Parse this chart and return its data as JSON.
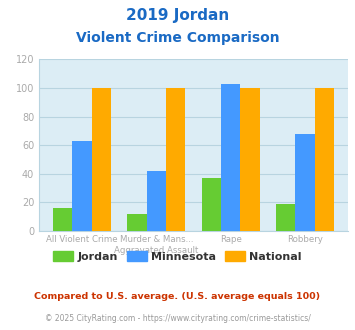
{
  "title_line1": "2019 Jordan",
  "title_line2": "Violent Crime Comparison",
  "jordan_values": [
    16,
    12,
    37,
    19
  ],
  "minnesota_values": [
    63,
    42,
    103,
    68
  ],
  "national_values": [
    100,
    100,
    100,
    100
  ],
  "jordan_color": "#66cc33",
  "minnesota_color": "#4499ff",
  "national_color": "#ffaa00",
  "title_color": "#1a6ac4",
  "plot_bg_color": "#dcedf5",
  "grid_color": "#b8d4e0",
  "ylim": [
    0,
    120
  ],
  "yticks": [
    0,
    20,
    40,
    60,
    80,
    100,
    120
  ],
  "tick_color": "#aaaaaa",
  "xtick_line1": [
    "",
    "Murder & Mans...",
    "",
    ""
  ],
  "xtick_line2": [
    "All Violent Crime",
    "Aggravated Assault",
    "Rape",
    "Robbery"
  ],
  "legend_labels": [
    "Jordan",
    "Minnesota",
    "National"
  ],
  "legend_label_color": "#333333",
  "footnote1": "Compared to U.S. average. (U.S. average equals 100)",
  "footnote2": "© 2025 CityRating.com - https://www.cityrating.com/crime-statistics/",
  "footnote1_color": "#cc3300",
  "footnote2_color": "#999999",
  "bar_width": 0.26
}
